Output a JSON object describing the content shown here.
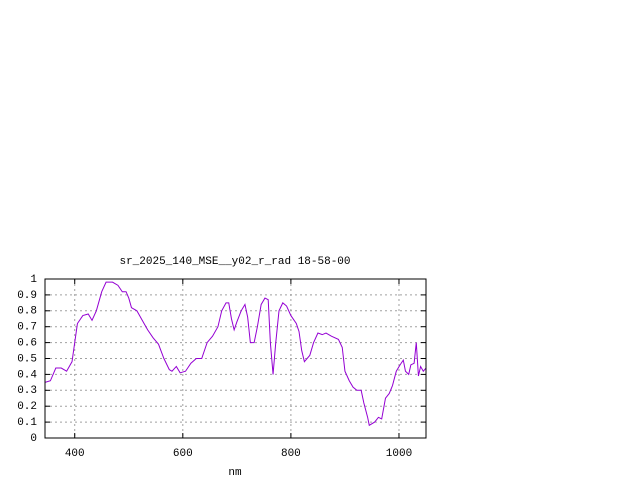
{
  "chart_data": {
    "type": "line",
    "title": "sr_2025_140_MSE__y02_r_rad 18-58-00",
    "x_label": "nm",
    "xlim": [
      345,
      1050
    ],
    "xticks": [
      400,
      600,
      800,
      1000
    ],
    "ylim": [
      0,
      1
    ],
    "yticks": [
      0,
      0.1,
      0.2,
      0.3,
      0.4,
      0.5,
      0.6,
      0.7,
      0.8,
      0.9,
      1
    ],
    "grid": true,
    "series": [
      {
        "color": "#9400d3",
        "x": [
          345,
          355,
          365,
          375,
          385,
          395,
          400,
          405,
          415,
          425,
          432,
          440,
          450,
          458,
          470,
          480,
          488,
          495,
          500,
          505,
          515,
          525,
          535,
          545,
          555,
          565,
          575,
          580,
          588,
          595,
          605,
          615,
          625,
          635,
          645,
          655,
          665,
          672,
          680,
          685,
          690,
          695,
          700,
          708,
          715,
          720,
          725,
          732,
          738,
          745,
          752,
          758,
          762,
          767,
          772,
          778,
          785,
          792,
          800,
          810,
          815,
          820,
          825,
          835,
          842,
          850,
          858,
          865,
          875,
          888,
          895,
          900,
          908,
          915,
          922,
          930,
          935,
          942,
          945,
          955,
          962,
          968,
          975,
          982,
          988,
          995,
          1002,
          1008,
          1012,
          1018,
          1022,
          1028,
          1032,
          1036,
          1040,
          1045,
          1050
        ],
        "values": [
          0.35,
          0.36,
          0.44,
          0.44,
          0.42,
          0.48,
          0.6,
          0.72,
          0.77,
          0.78,
          0.74,
          0.8,
          0.92,
          0.98,
          0.98,
          0.96,
          0.92,
          0.92,
          0.88,
          0.82,
          0.8,
          0.74,
          0.68,
          0.63,
          0.59,
          0.5,
          0.43,
          0.42,
          0.45,
          0.41,
          0.42,
          0.47,
          0.5,
          0.5,
          0.6,
          0.64,
          0.7,
          0.8,
          0.85,
          0.85,
          0.75,
          0.68,
          0.73,
          0.8,
          0.84,
          0.76,
          0.6,
          0.6,
          0.7,
          0.84,
          0.88,
          0.87,
          0.6,
          0.4,
          0.6,
          0.8,
          0.85,
          0.83,
          0.77,
          0.72,
          0.67,
          0.55,
          0.48,
          0.52,
          0.6,
          0.66,
          0.65,
          0.66,
          0.64,
          0.62,
          0.57,
          0.42,
          0.36,
          0.32,
          0.3,
          0.3,
          0.22,
          0.13,
          0.08,
          0.1,
          0.13,
          0.12,
          0.25,
          0.28,
          0.33,
          0.42,
          0.46,
          0.49,
          0.42,
          0.4,
          0.46,
          0.47,
          0.6,
          0.39,
          0.45,
          0.42,
          0.44
        ]
      }
    ]
  }
}
